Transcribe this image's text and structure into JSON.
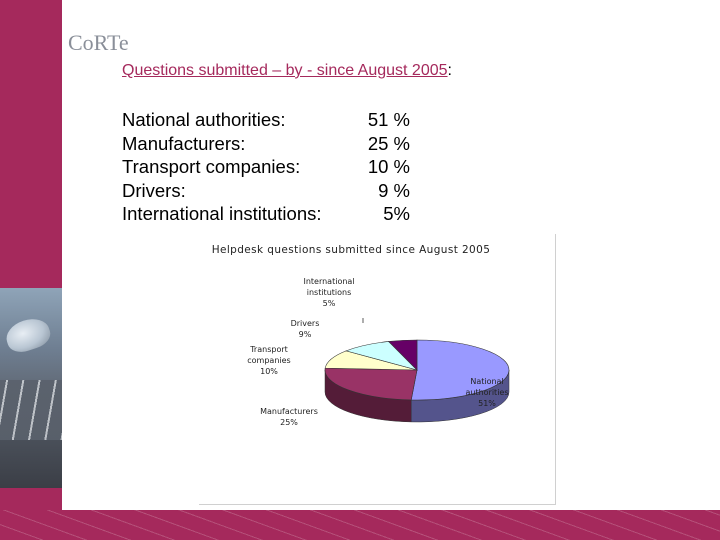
{
  "logo": {
    "text": "CoRTe"
  },
  "heading": {
    "text": "Questions submitted – by - since August 2005",
    "colon": ":"
  },
  "categories": [
    {
      "label": "National authorities:",
      "value": "51 %"
    },
    {
      "label": "Manufacturers:",
      "value": "25 %"
    },
    {
      "label": "Transport companies:",
      "value": "10 %"
    },
    {
      "label": "Drivers:",
      "value": "9 %"
    },
    {
      "label": "International institutions:",
      "value": "5%"
    }
  ],
  "colors": {
    "accent": "#a5295c",
    "national": "#9999ff",
    "manufacturers": "#993366",
    "transport": "#ffffcc",
    "drivers": "#ccffff",
    "international": "#660066"
  },
  "chart_data": {
    "type": "pie",
    "title": "Helpdesk questions submitted since August 2005",
    "slices": [
      {
        "name": "National authorities",
        "value": 51,
        "label": [
          "National",
          "authorities",
          "51%"
        ],
        "color": "#9999ff"
      },
      {
        "name": "Manufacturers",
        "value": 25,
        "label": [
          "Manufacturers",
          "25%"
        ],
        "color": "#993366"
      },
      {
        "name": "Transport companies",
        "value": 10,
        "label": [
          "Transport",
          "companies",
          "10%"
        ],
        "color": "#ffffcc"
      },
      {
        "name": "Drivers",
        "value": 9,
        "label": [
          "Drivers",
          "9%"
        ],
        "color": "#ccffff"
      },
      {
        "name": "International institutions",
        "value": 5,
        "label": [
          "International",
          "institutions",
          "5%"
        ],
        "color": "#660066"
      }
    ],
    "start_angle_deg": -90,
    "three_d": true
  }
}
